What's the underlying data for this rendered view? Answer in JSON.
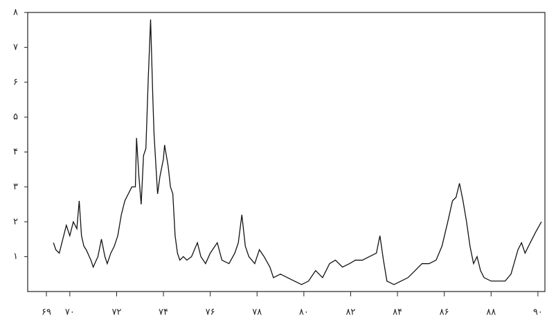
{
  "chart_data": {
    "type": "line",
    "x": [
      69.3,
      69.4,
      69.55,
      69.7,
      69.85,
      70.0,
      70.15,
      70.3,
      70.4,
      70.5,
      70.6,
      70.7,
      70.9,
      71.0,
      71.2,
      71.35,
      71.5,
      71.6,
      71.75,
      71.9,
      72.05,
      72.2,
      72.35,
      72.5,
      72.65,
      72.8,
      72.85,
      72.95,
      73.05,
      73.15,
      73.25,
      73.35,
      73.45,
      73.55,
      73.6,
      73.75,
      73.85,
      74.0,
      74.05,
      74.2,
      74.3,
      74.4,
      74.5,
      74.6,
      74.7,
      74.85,
      75.0,
      75.2,
      75.45,
      75.6,
      75.8,
      76.0,
      76.3,
      76.5,
      76.8,
      77.05,
      77.2,
      77.35,
      77.5,
      77.65,
      77.9,
      78.1,
      78.3,
      78.55,
      78.7,
      79.0,
      79.3,
      79.6,
      79.9,
      80.2,
      80.5,
      80.8,
      81.1,
      81.35,
      81.65,
      81.95,
      82.2,
      82.5,
      82.8,
      83.1,
      83.25,
      83.4,
      83.55,
      83.85,
      84.15,
      84.45,
      84.75,
      85.05,
      85.35,
      85.65,
      85.9,
      86.15,
      86.35,
      86.5,
      86.65,
      86.8,
      86.95,
      87.1,
      87.25,
      87.4,
      87.55,
      87.7,
      88.0,
      88.3,
      88.6,
      88.85,
      89.15,
      89.3,
      89.45,
      89.6,
      89.75,
      89.9,
      90.15
    ],
    "series": [
      {
        "color": "#111111",
        "values": [
          1.4,
          1.2,
          1.1,
          1.5,
          1.9,
          1.6,
          2.0,
          1.8,
          2.6,
          1.6,
          1.3,
          1.2,
          0.9,
          0.7,
          1.0,
          1.5,
          1.0,
          0.8,
          1.1,
          1.3,
          1.6,
          2.2,
          2.6,
          2.8,
          3.0,
          3.0,
          4.4,
          3.3,
          2.5,
          3.9,
          4.1,
          6.1,
          7.8,
          5.5,
          4.5,
          2.8,
          3.3,
          3.8,
          4.2,
          3.6,
          3.0,
          2.8,
          1.6,
          1.1,
          0.9,
          1.0,
          0.9,
          1.0,
          1.4,
          1.0,
          0.8,
          1.1,
          1.4,
          0.9,
          0.8,
          1.1,
          1.4,
          2.2,
          1.3,
          1.0,
          0.8,
          1.2,
          1.0,
          0.7,
          0.4,
          0.5,
          0.4,
          0.3,
          0.2,
          0.3,
          0.6,
          0.4,
          0.8,
          0.9,
          0.7,
          0.8,
          0.9,
          0.9,
          1.0,
          1.1,
          1.6,
          0.9,
          0.3,
          0.2,
          0.3,
          0.4,
          0.6,
          0.8,
          0.8,
          0.9,
          1.3,
          2.0,
          2.6,
          2.7,
          3.1,
          2.6,
          2.0,
          1.3,
          0.8,
          1.0,
          0.6,
          0.4,
          0.3,
          0.3,
          0.3,
          0.5,
          1.2,
          1.4,
          1.1,
          1.3,
          1.5,
          1.7,
          2.0
        ]
      }
    ],
    "xlim": [
      68.2,
      90.3
    ],
    "xticks": [
      {
        "value": 69,
        "label": "۶۹"
      },
      {
        "value": 70,
        "label": "۷۰"
      },
      {
        "value": 72,
        "label": "۷۲"
      },
      {
        "value": 74,
        "label": "۷۴"
      },
      {
        "value": 76,
        "label": "۷۶"
      },
      {
        "value": 78,
        "label": "۷۸"
      },
      {
        "value": 80,
        "label": "۸۰"
      },
      {
        "value": 82,
        "label": "۸۲"
      },
      {
        "value": 84,
        "label": "۸۴"
      },
      {
        "value": 86,
        "label": "۸۶"
      },
      {
        "value": 88,
        "label": "۸۸"
      },
      {
        "value": 90,
        "label": "۹۰"
      }
    ],
    "ylim": [
      0,
      8
    ],
    "yticks": [
      {
        "value": 1,
        "label": "۱"
      },
      {
        "value": 2,
        "label": "۲"
      },
      {
        "value": 3,
        "label": "۳"
      },
      {
        "value": 4,
        "label": "۴"
      },
      {
        "value": 5,
        "label": "۵"
      },
      {
        "value": 6,
        "label": "۶"
      },
      {
        "value": 7,
        "label": "۷"
      },
      {
        "value": 8,
        "label": "۸"
      }
    ],
    "grid": false
  }
}
